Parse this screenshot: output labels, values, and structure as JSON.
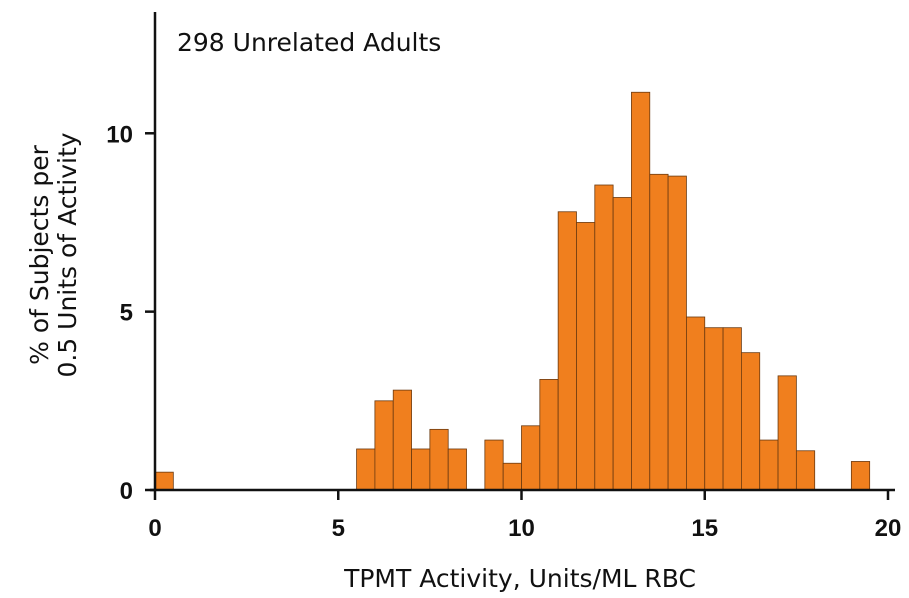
{
  "chart_data": {
    "type": "histogram",
    "annotation": "298 Unrelated Adults",
    "xlabel": "TPMT Activity, Units/ML RBC",
    "ylabel": [
      "% of Subjects per",
      "0.5 Units of Activity"
    ],
    "color": "#f07f1e",
    "bins": [
      0,
      0.5,
      1,
      1.5,
      2,
      2.5,
      3,
      3.5,
      4,
      4.5,
      5,
      5.5,
      6,
      6.5,
      7,
      7.5,
      8,
      8.5,
      9,
      9.5,
      10,
      10.5,
      11,
      11.5,
      12,
      12.5,
      13,
      13.5,
      14,
      14.5,
      15,
      15.5,
      16,
      16.5,
      17,
      17.5,
      18,
      18.5,
      19,
      19.5,
      20
    ],
    "values": [
      0.5,
      0,
      0,
      0,
      0,
      0,
      0,
      0,
      0,
      0,
      0,
      1.15,
      2.5,
      2.8,
      1.15,
      1.7,
      1.15,
      0,
      1.4,
      0.75,
      1.8,
      3.1,
      7.8,
      7.5,
      8.55,
      8.2,
      11.15,
      8.85,
      8.8,
      4.85,
      4.55,
      4.55,
      3.85,
      1.4,
      3.2,
      1.1,
      0,
      0,
      0.8,
      0
    ],
    "xlim": [
      0,
      20
    ],
    "xticks": [
      0,
      5,
      10,
      15,
      20
    ],
    "ylim": [
      0,
      13.4
    ],
    "yticks": [
      0,
      5,
      10
    ]
  }
}
